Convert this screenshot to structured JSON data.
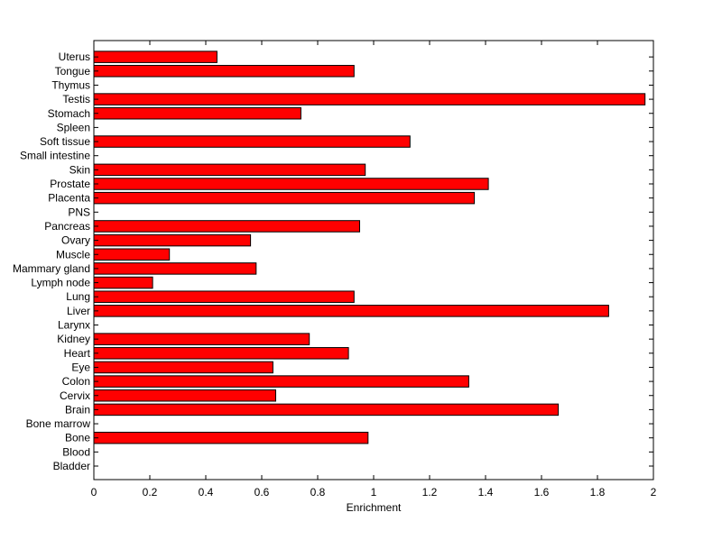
{
  "chart_data": {
    "type": "bar",
    "orientation": "horizontal",
    "title": "",
    "xlabel": "Enrichment",
    "ylabel": "",
    "xlim": [
      0,
      2
    ],
    "xticks": [
      "0",
      "0.2",
      "0.4",
      "0.6",
      "0.8",
      "1",
      "1.2",
      "1.4",
      "1.6",
      "1.8",
      "2"
    ],
    "grid": false,
    "bar_color": "#ff0000",
    "edge_color": "#000000",
    "categories": [
      "Bladder",
      "Blood",
      "Bone",
      "Bone marrow",
      "Brain",
      "Cervix",
      "Colon",
      "Eye",
      "Heart",
      "Kidney",
      "Larynx",
      "Liver",
      "Lung",
      "Lymph node",
      "Mammary gland",
      "Muscle",
      "Ovary",
      "Pancreas",
      "PNS",
      "Placenta",
      "Prostate",
      "Skin",
      "Small intestine",
      "Soft tissue",
      "Spleen",
      "Stomach",
      "Testis",
      "Thymus",
      "Tongue",
      "Uterus"
    ],
    "values": [
      0,
      0,
      0.98,
      0,
      1.66,
      0.65,
      1.34,
      0.64,
      0.91,
      0.77,
      0,
      1.84,
      0.93,
      0.21,
      0.58,
      0.27,
      0.56,
      0.95,
      0,
      1.36,
      1.41,
      0.97,
      0,
      1.13,
      0,
      0.74,
      1.97,
      0,
      0.93,
      0.44
    ]
  }
}
